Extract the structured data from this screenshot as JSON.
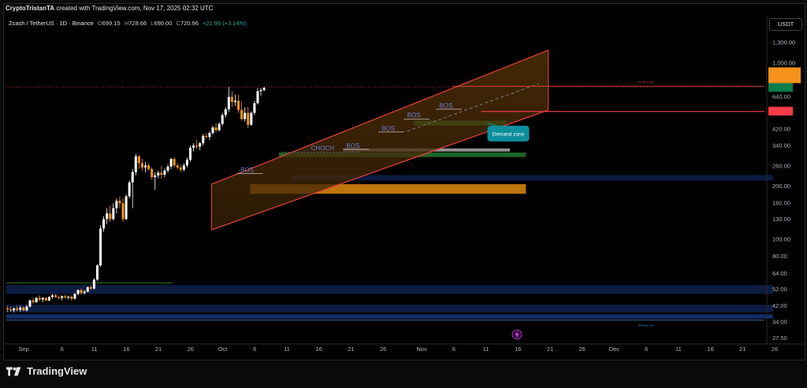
{
  "header": {
    "author": "CryptoTristanTA",
    "text": "created with TradingView.com, Nov 17, 2025 02:32 UTC"
  },
  "legend": {
    "symbol": "Zcash / TetherUS · 1D · Binance",
    "open_label": "O",
    "open": "699.15",
    "high_label": "H",
    "high": "728.66",
    "low_label": "L",
    "low": "690.00",
    "close_label": "C",
    "close": "720.96",
    "change": "+21.96 (+3.14%)"
  },
  "currency_button": "USDT",
  "footer": {
    "brand": "TradingView"
  },
  "colors": {
    "up": "#ffffff",
    "down": "#f7931a",
    "channel": "#e8413c",
    "support": "#ff3b47",
    "demand": "#0e8f9e"
  },
  "chart_data": {
    "type": "candlestick",
    "y_scale": "log",
    "ylim": [
      25.5,
      1650
    ],
    "y_ticks": [
      "1,300.00",
      "1,000.00",
      "720.96",
      "640.00",
      "529.49",
      "420.00",
      "340.00",
      "260.00",
      "200.00",
      "160.00",
      "130.00",
      "100.00",
      "80.00",
      "64.00",
      "52.00",
      "42.00",
      "34.00",
      "27.50"
    ],
    "x_ticks": [
      "Sep",
      "6",
      "11",
      "16",
      "21",
      "26",
      "Oct",
      "6",
      "11",
      "16",
      "21",
      "26",
      "Nov",
      "6",
      "11",
      "16",
      "21",
      "26",
      "Dec",
      "6",
      "11",
      "16",
      "21",
      "26"
    ],
    "price_badge": {
      "price": "720.96",
      "countdown": "21:27:45"
    },
    "current_price": "720.96",
    "support_level": "529.49",
    "annotations": {
      "bos": [
        "BOS",
        "BOS",
        "BOS",
        "BOS",
        "BOS"
      ],
      "choch": "CHOCH",
      "demand_zone": "Demand zone",
      "weak_high": "Weak High",
      "strong_low": "Strong Low"
    },
    "candles": [
      {
        "o": 40.5,
        "h": 42,
        "l": 38.5,
        "c": 40
      },
      {
        "o": 40,
        "h": 41.5,
        "l": 38.8,
        "c": 39.5
      },
      {
        "o": 39.5,
        "h": 41,
        "l": 38.5,
        "c": 40.5
      },
      {
        "o": 40.5,
        "h": 42,
        "l": 39,
        "c": 39.8
      },
      {
        "o": 39.8,
        "h": 42,
        "l": 38.8,
        "c": 41
      },
      {
        "o": 41,
        "h": 41.5,
        "l": 39,
        "c": 39.5
      },
      {
        "o": 39.5,
        "h": 42.5,
        "l": 39,
        "c": 41.5
      },
      {
        "o": 41.5,
        "h": 45.5,
        "l": 41,
        "c": 45
      },
      {
        "o": 45,
        "h": 46.5,
        "l": 43,
        "c": 44
      },
      {
        "o": 44,
        "h": 47,
        "l": 43.5,
        "c": 46.5
      },
      {
        "o": 46.5,
        "h": 48,
        "l": 44.5,
        "c": 45.5
      },
      {
        "o": 45.5,
        "h": 47,
        "l": 44,
        "c": 46.5
      },
      {
        "o": 46.5,
        "h": 47,
        "l": 44.5,
        "c": 45
      },
      {
        "o": 45,
        "h": 47.5,
        "l": 44.5,
        "c": 47
      },
      {
        "o": 47,
        "h": 49,
        "l": 46,
        "c": 48
      },
      {
        "o": 48,
        "h": 49,
        "l": 46.5,
        "c": 47
      },
      {
        "o": 47,
        "h": 48,
        "l": 45.5,
        "c": 46.5
      },
      {
        "o": 46.5,
        "h": 48,
        "l": 45,
        "c": 47.5
      },
      {
        "o": 47.5,
        "h": 48.5,
        "l": 46,
        "c": 46.8
      },
      {
        "o": 46.8,
        "h": 48,
        "l": 45.5,
        "c": 47.2
      },
      {
        "o": 47.2,
        "h": 48,
        "l": 45,
        "c": 46
      },
      {
        "o": 46,
        "h": 49.5,
        "l": 45.5,
        "c": 49
      },
      {
        "o": 49,
        "h": 52,
        "l": 48,
        "c": 51.5
      },
      {
        "o": 51.5,
        "h": 52.5,
        "l": 48.5,
        "c": 49.5
      },
      {
        "o": 49.5,
        "h": 51.5,
        "l": 48.5,
        "c": 50.5
      },
      {
        "o": 50.5,
        "h": 54,
        "l": 50,
        "c": 53.5
      },
      {
        "o": 53.5,
        "h": 54.5,
        "l": 51.5,
        "c": 52.5
      },
      {
        "o": 52.5,
        "h": 60,
        "l": 52,
        "c": 59
      },
      {
        "o": 59,
        "h": 72,
        "l": 58,
        "c": 71
      },
      {
        "o": 71,
        "h": 120,
        "l": 70,
        "c": 115
      },
      {
        "o": 115,
        "h": 135,
        "l": 110,
        "c": 130
      },
      {
        "o": 130,
        "h": 150,
        "l": 122,
        "c": 140
      },
      {
        "o": 140,
        "h": 155,
        "l": 125,
        "c": 130
      },
      {
        "o": 130,
        "h": 160,
        "l": 128,
        "c": 150
      },
      {
        "o": 150,
        "h": 170,
        "l": 140,
        "c": 165
      },
      {
        "o": 165,
        "h": 175,
        "l": 150,
        "c": 160
      },
      {
        "o": 160,
        "h": 170,
        "l": 125,
        "c": 130
      },
      {
        "o": 130,
        "h": 180,
        "l": 128,
        "c": 175
      },
      {
        "o": 175,
        "h": 215,
        "l": 170,
        "c": 210
      },
      {
        "o": 210,
        "h": 250,
        "l": 150,
        "c": 240
      },
      {
        "o": 240,
        "h": 305,
        "l": 230,
        "c": 295
      },
      {
        "o": 295,
        "h": 300,
        "l": 250,
        "c": 270
      },
      {
        "o": 270,
        "h": 285,
        "l": 245,
        "c": 255
      },
      {
        "o": 255,
        "h": 275,
        "l": 240,
        "c": 262
      },
      {
        "o": 262,
        "h": 270,
        "l": 245,
        "c": 250
      },
      {
        "o": 250,
        "h": 255,
        "l": 218,
        "c": 225
      },
      {
        "o": 225,
        "h": 240,
        "l": 190,
        "c": 230
      },
      {
        "o": 230,
        "h": 245,
        "l": 222,
        "c": 238
      },
      {
        "o": 238,
        "h": 260,
        "l": 220,
        "c": 232
      },
      {
        "o": 232,
        "h": 252,
        "l": 225,
        "c": 245
      },
      {
        "o": 245,
        "h": 265,
        "l": 238,
        "c": 258
      },
      {
        "o": 258,
        "h": 290,
        "l": 250,
        "c": 285
      },
      {
        "o": 285,
        "h": 292,
        "l": 255,
        "c": 262
      },
      {
        "o": 262,
        "h": 270,
        "l": 248,
        "c": 255
      },
      {
        "o": 255,
        "h": 265,
        "l": 240,
        "c": 248
      },
      {
        "o": 248,
        "h": 270,
        "l": 242,
        "c": 262
      },
      {
        "o": 262,
        "h": 290,
        "l": 255,
        "c": 282
      },
      {
        "o": 282,
        "h": 340,
        "l": 275,
        "c": 330
      },
      {
        "o": 330,
        "h": 350,
        "l": 315,
        "c": 340
      },
      {
        "o": 340,
        "h": 365,
        "l": 325,
        "c": 335
      },
      {
        "o": 335,
        "h": 355,
        "l": 320,
        "c": 350
      },
      {
        "o": 350,
        "h": 395,
        "l": 340,
        "c": 385
      },
      {
        "o": 385,
        "h": 400,
        "l": 370,
        "c": 380
      },
      {
        "o": 380,
        "h": 410,
        "l": 365,
        "c": 400
      },
      {
        "o": 400,
        "h": 440,
        "l": 390,
        "c": 430
      },
      {
        "o": 430,
        "h": 455,
        "l": 405,
        "c": 415
      },
      {
        "o": 415,
        "h": 460,
        "l": 408,
        "c": 450
      },
      {
        "o": 450,
        "h": 520,
        "l": 440,
        "c": 505
      },
      {
        "o": 505,
        "h": 560,
        "l": 490,
        "c": 545
      },
      {
        "o": 545,
        "h": 730,
        "l": 525,
        "c": 640
      },
      {
        "o": 640,
        "h": 690,
        "l": 560,
        "c": 600
      },
      {
        "o": 600,
        "h": 660,
        "l": 570,
        "c": 610
      },
      {
        "o": 610,
        "h": 660,
        "l": 520,
        "c": 540
      },
      {
        "o": 540,
        "h": 600,
        "l": 470,
        "c": 480
      },
      {
        "o": 480,
        "h": 560,
        "l": 465,
        "c": 520
      },
      {
        "o": 520,
        "h": 560,
        "l": 425,
        "c": 445
      },
      {
        "o": 445,
        "h": 530,
        "l": 440,
        "c": 520
      },
      {
        "o": 520,
        "h": 610,
        "l": 505,
        "c": 590
      },
      {
        "o": 590,
        "h": 720,
        "l": 580,
        "c": 690
      },
      {
        "o": 690,
        "h": 720,
        "l": 650,
        "c": 700
      },
      {
        "o": 700,
        "h": 729,
        "l": 690,
        "c": 721
      }
    ]
  }
}
